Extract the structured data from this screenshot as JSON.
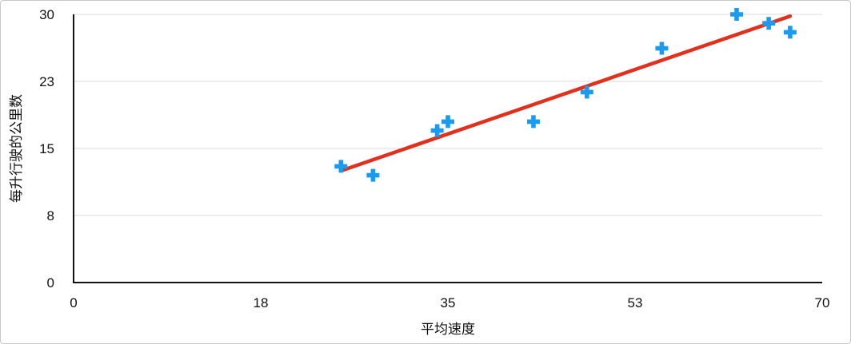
{
  "chart_data": {
    "type": "scatter",
    "title": "",
    "xlabel": "平均速度",
    "ylabel": "每升行驶的公里数",
    "xlim": [
      0,
      70
    ],
    "ylim": [
      0,
      30
    ],
    "x_ticks": [
      "0",
      "18",
      "35",
      "53",
      "70"
    ],
    "x_tick_values": [
      0,
      17.5,
      35,
      52.5,
      70
    ],
    "y_ticks": [
      "0",
      "8",
      "15",
      "23",
      "30"
    ],
    "y_tick_values": [
      0,
      7.5,
      15,
      22.5,
      30
    ],
    "grid": "horizontal",
    "legend": "none",
    "marker": "plus",
    "marker_color": "#1a9bf0",
    "trendline": {
      "type": "linear",
      "color": "#e0301e",
      "x_start": 25,
      "y_start": 12.5,
      "x_end": 67,
      "y_end": 29.8
    },
    "series": [
      {
        "points": [
          {
            "x": 25,
            "y": 13
          },
          {
            "x": 28,
            "y": 12
          },
          {
            "x": 34,
            "y": 17
          },
          {
            "x": 35,
            "y": 18
          },
          {
            "x": 43,
            "y": 18
          },
          {
            "x": 48,
            "y": 21.3
          },
          {
            "x": 55,
            "y": 26.2
          },
          {
            "x": 62,
            "y": 30
          },
          {
            "x": 65,
            "y": 29
          },
          {
            "x": 67,
            "y": 28
          }
        ]
      }
    ]
  }
}
